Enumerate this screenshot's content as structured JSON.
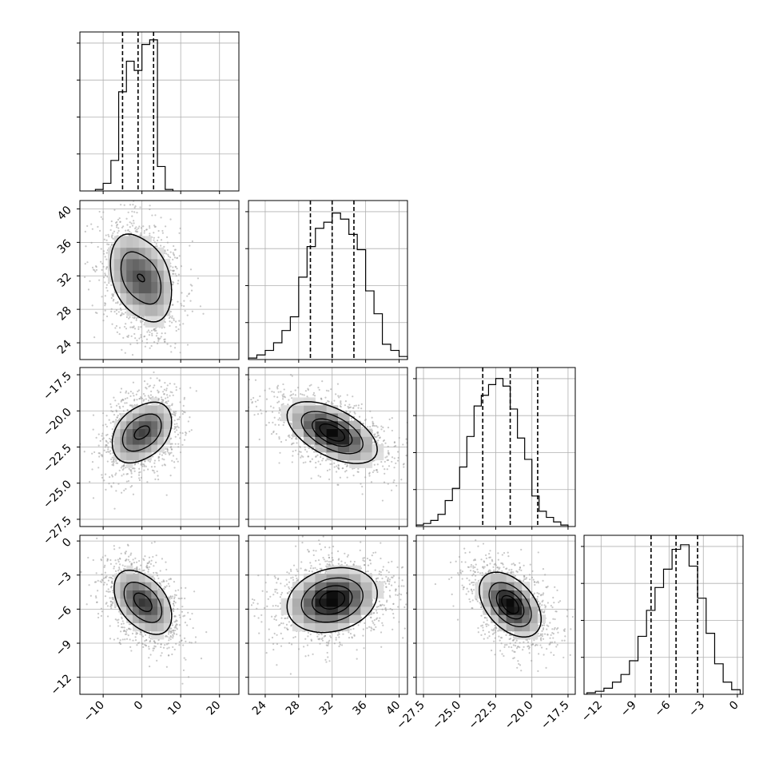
{
  "chart_data": {
    "type": "corner",
    "title": "",
    "grid": true,
    "parameters": [
      {
        "range": [
          -16,
          25
        ],
        "ticks": [
          -10,
          0,
          10,
          20
        ],
        "tick_labels": [
          "−10",
          "0",
          "10",
          "20"
        ],
        "quantiles": [
          -5.0,
          -1.0,
          3.0
        ],
        "hist_bins": [
          -12,
          -10,
          -8,
          -6,
          -4,
          -2,
          0,
          2,
          4,
          6,
          8
        ],
        "hist_values": [
          0.01,
          0.05,
          0.2,
          0.65,
          0.85,
          0.79,
          0.96,
          0.99,
          0.16,
          0.01
        ]
      },
      {
        "range": [
          22,
          41
        ],
        "ticks": [
          24,
          28,
          32,
          36,
          40
        ],
        "tick_labels": [
          "24",
          "28",
          "32",
          "36",
          "40"
        ],
        "quantiles": [
          29.4,
          32.0,
          34.6
        ],
        "hist_bins": [
          22,
          23,
          24,
          25,
          26,
          27,
          28,
          29,
          30,
          31,
          32,
          33,
          34,
          35,
          36,
          37,
          38,
          39,
          40,
          41
        ],
        "hist_values": [
          0.01,
          0.03,
          0.06,
          0.11,
          0.19,
          0.28,
          0.54,
          0.74,
          0.86,
          0.9,
          0.96,
          0.92,
          0.82,
          0.72,
          0.45,
          0.3,
          0.1,
          0.06,
          0.02
        ]
      },
      {
        "range": [
          -28,
          -17
        ],
        "ticks": [
          -27.5,
          -25.0,
          -22.5,
          -20.0,
          -17.5
        ],
        "tick_labels": [
          "−27.5",
          "−25.0",
          "−22.5",
          "−20.0",
          "−17.5"
        ],
        "quantiles": [
          -23.4,
          -21.5,
          -19.6
        ],
        "hist_bins": [
          -28.0,
          -27.5,
          -27.0,
          -26.5,
          -26.0,
          -25.5,
          -25.0,
          -24.5,
          -24.0,
          -23.5,
          -23.0,
          -22.5,
          -22.0,
          -21.5,
          -21.0,
          -20.5,
          -20.0,
          -19.5,
          -19.0,
          -18.5,
          -18.0,
          -17.5
        ],
        "hist_values": [
          0.01,
          0.02,
          0.04,
          0.08,
          0.17,
          0.25,
          0.39,
          0.59,
          0.79,
          0.86,
          0.93,
          0.97,
          0.92,
          0.77,
          0.58,
          0.44,
          0.2,
          0.1,
          0.06,
          0.03,
          0.01
        ]
      },
      {
        "range": [
          -13.5,
          0.5
        ],
        "ticks": [
          -12,
          -9,
          -6,
          -3,
          0
        ],
        "tick_labels": [
          "−12",
          "−9",
          "−6",
          "−3",
          "0"
        ],
        "quantiles": [
          -7.6,
          -5.4,
          -3.5
        ],
        "hist_bins": [
          -13.25,
          -12.5,
          -11.75,
          -11.0,
          -10.25,
          -9.5,
          -8.75,
          -8.0,
          -7.25,
          -6.5,
          -5.75,
          -5.0,
          -4.25,
          -3.5,
          -2.75,
          -2.0,
          -1.25,
          -0.5,
          0.25
        ],
        "hist_values": [
          0.01,
          0.02,
          0.04,
          0.08,
          0.13,
          0.22,
          0.38,
          0.55,
          0.7,
          0.82,
          0.95,
          0.98,
          0.84,
          0.63,
          0.4,
          0.2,
          0.08,
          0.03
        ]
      }
    ],
    "pairs": [
      {
        "row": 1,
        "col": 0,
        "center": [
          0,
          32
        ],
        "sd": [
          4,
          3.4
        ],
        "rho": -0.2,
        "peaks": [
          [
            -3,
            32.5
          ],
          [
            2.5,
            31
          ]
        ]
      },
      {
        "row": 2,
        "col": 0,
        "center": [
          0,
          -21.5
        ],
        "sd": [
          4,
          1.35
        ],
        "rho": 0.25,
        "peaks": [
          [
            -2.5,
            -21.8
          ],
          [
            2.5,
            -21.2
          ]
        ]
      },
      {
        "row": 2,
        "col": 1,
        "center": [
          32,
          -21.5
        ],
        "sd": [
          3.4,
          1.35
        ],
        "rho": -0.55,
        "peaks": [
          [
            32,
            -21.5
          ]
        ]
      },
      {
        "row": 3,
        "col": 0,
        "center": [
          0,
          -5.4
        ],
        "sd": [
          4,
          1.8
        ],
        "rho": -0.35,
        "peaks": [
          [
            -2,
            -5
          ],
          [
            2.5,
            -5.8
          ]
        ]
      },
      {
        "row": 3,
        "col": 1,
        "center": [
          32,
          -5.4
        ],
        "sd": [
          3.4,
          1.8
        ],
        "rho": 0.2,
        "peaks": [
          [
            32,
            -5.2
          ]
        ]
      },
      {
        "row": 3,
        "col": 2,
        "center": [
          -21.5,
          -5.4
        ],
        "sd": [
          1.35,
          1.8
        ],
        "rho": -0.45,
        "peaks": [
          [
            -21.5,
            -5.6
          ]
        ]
      }
    ]
  }
}
